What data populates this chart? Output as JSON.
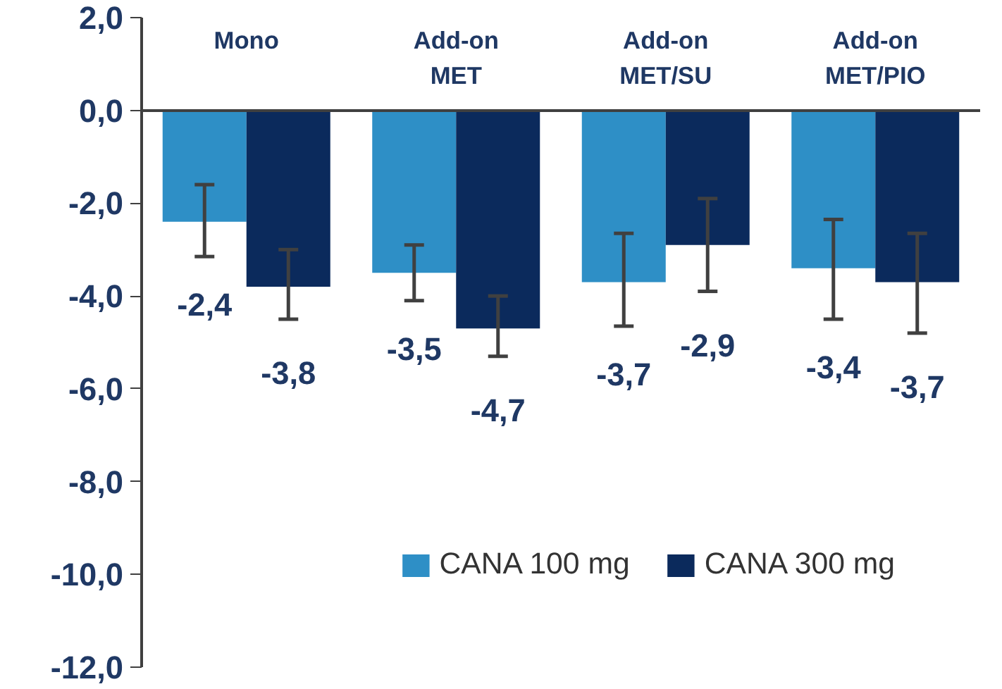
{
  "chart_data": {
    "type": "bar",
    "categories": [
      "Mono",
      "Add-on\nMET",
      "Add-on\nMET/SU",
      "Add-on\nMET/PIO"
    ],
    "series": [
      {
        "name": "CANA 100 mg",
        "color": "#2e8fc6",
        "values": [
          -2.4,
          -3.5,
          -3.7,
          -3.4
        ],
        "errors": [
          [
            -3.15,
            -1.6
          ],
          [
            -4.1,
            -2.9
          ],
          [
            -4.65,
            -2.65
          ],
          [
            -4.5,
            -2.35
          ]
        ],
        "value_labels": [
          "-2,4",
          "-3,5",
          "-3,7",
          "-3,4"
        ]
      },
      {
        "name": "CANA 300 mg",
        "color": "#0b2a5c",
        "values": [
          -3.8,
          -4.7,
          -2.9,
          -3.7
        ],
        "errors": [
          [
            -4.5,
            -3.0
          ],
          [
            -5.3,
            -4.0
          ],
          [
            -3.9,
            -1.9
          ],
          [
            -4.8,
            -2.65
          ]
        ],
        "value_labels": [
          "-3,8",
          "-4,7",
          "-2,9",
          "-3,7"
        ]
      }
    ],
    "ylim": [
      -12,
      2
    ],
    "yticks": [
      {
        "value": -12,
        "label": "-12,0"
      },
      {
        "value": -10,
        "label": "-10,0"
      },
      {
        "value": -8,
        "label": "-8,0"
      },
      {
        "value": -6,
        "label": "-6,0"
      },
      {
        "value": -4,
        "label": "-4,0"
      },
      {
        "value": -2,
        "label": "-2,0"
      },
      {
        "value": 0,
        "label": "0,0"
      },
      {
        "value": 2,
        "label": "2,0"
      }
    ],
    "grid": false,
    "legend": "bottom right"
  }
}
